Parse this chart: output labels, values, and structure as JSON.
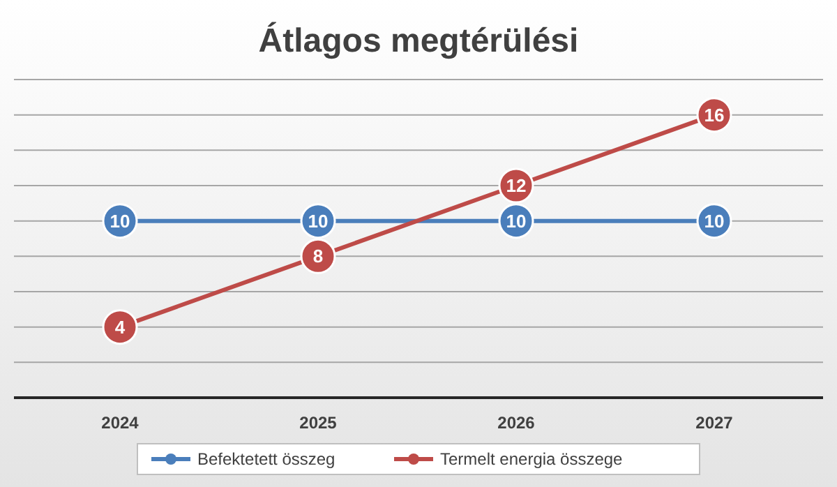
{
  "chart_data": {
    "type": "line",
    "title": "Átlagos megtérülési",
    "categories": [
      "2024",
      "2025",
      "2026",
      "2027"
    ],
    "series": [
      {
        "name": "Befektetett összeg",
        "color": "#4a7ebb",
        "values": [
          10,
          10,
          10,
          10
        ]
      },
      {
        "name": "Termelt energia összege",
        "color": "#be4b48",
        "values": [
          4,
          8,
          12,
          16
        ]
      }
    ],
    "ylim": [
      0,
      18
    ],
    "yticks": [
      {
        "value": 0,
        "label": null
      },
      {
        "value": 2,
        "label": null
      },
      {
        "value": 4,
        "label": null
      },
      {
        "value": 6,
        "label": null
      },
      {
        "value": 8,
        "label": null
      },
      {
        "value": 10,
        "label": null
      },
      {
        "value": 12,
        "label": null
      },
      {
        "value": 14,
        "label": null
      },
      {
        "value": 16,
        "label": null
      },
      {
        "value": 18,
        "label": null
      }
    ],
    "tick_labels": "x",
    "grid": "y",
    "legend": "bottom",
    "marker": "circle",
    "line_style": "solid",
    "data_labels": true
  }
}
